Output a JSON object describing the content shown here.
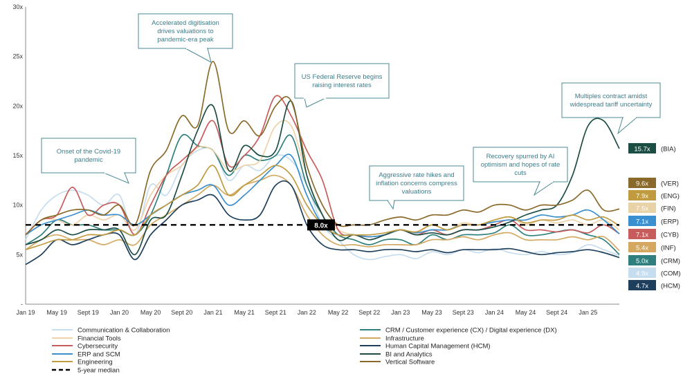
{
  "chart_data": {
    "type": "line",
    "title": "",
    "xlabel": "",
    "ylabel": "",
    "ylim": [
      0,
      30
    ],
    "yticks": [
      "-",
      "5x",
      "10x",
      "15x",
      "20x",
      "25x",
      "30x"
    ],
    "xticks": [
      "Jan 19",
      "May 19",
      "Sept 19",
      "Jan 20",
      "May 20",
      "Sept 20",
      "Jan 21",
      "May 21",
      "Sept 21",
      "Jan 22",
      "May 22",
      "Sept 22",
      "Jan 23",
      "May 23",
      "Sept 23",
      "Jan 24",
      "May 24",
      "Sept 24",
      "Jan 25"
    ],
    "x": [
      0,
      2,
      4,
      6,
      8,
      10,
      12,
      14,
      16,
      18,
      20,
      22,
      24,
      26,
      28,
      30,
      32,
      34,
      36,
      38,
      40,
      42,
      44,
      46,
      48,
      50,
      52,
      54,
      56,
      58,
      60,
      62,
      64,
      66,
      68,
      70,
      72,
      74,
      76
    ],
    "median": {
      "label": "5-year  median",
      "value": 8.0,
      "value_label": "8.0x"
    },
    "series": [
      {
        "name": "Communication & Collaboration",
        "code": "(COM)",
        "end_label": "4.9x",
        "color": "#c6dcef",
        "values": [
          6.5,
          9.5,
          11,
          11.5,
          11,
          10,
          11,
          7,
          12,
          11,
          14,
          15.5,
          15.5,
          12.5,
          14,
          13.5,
          15,
          14.5,
          12,
          8,
          6.5,
          5,
          4.5,
          4.8,
          5,
          4.6,
          5.3,
          5,
          5.5,
          5.2,
          5.6,
          5.2,
          5,
          5.3,
          5,
          5.2,
          6,
          5.5,
          4.9
        ]
      },
      {
        "name": "CRM / Customer experience (CX) / Digital experience (DX)",
        "code": "(CRM)",
        "end_label": "5.0x",
        "color": "#2e7f7d",
        "values": [
          6,
          7,
          8.5,
          8,
          8,
          7.5,
          7.5,
          7,
          9,
          13,
          17,
          16,
          15.5,
          13,
          15,
          14.5,
          15,
          17,
          12,
          9,
          7,
          6.5,
          6,
          6.5,
          6.5,
          6,
          7,
          6.5,
          7,
          7,
          7.2,
          8,
          7,
          7,
          7.3,
          7.5,
          7,
          6.5,
          5
        ]
      },
      {
        "name": "Financial Tools",
        "code": "(FIN)",
        "end_label": "7.5x",
        "color": "#efd3a8",
        "values": [
          7,
          8.5,
          8.5,
          8,
          9,
          8.5,
          9,
          7.5,
          11,
          13,
          14,
          15.8,
          15.5,
          13.5,
          14,
          14.5,
          18,
          18,
          13,
          9,
          7.5,
          7,
          6.8,
          7,
          7.5,
          7.2,
          8,
          7.5,
          8.2,
          8,
          8.5,
          8.8,
          8,
          8.5,
          8.2,
          8.5,
          8,
          8.5,
          7.5
        ]
      },
      {
        "name": "Infrastructure",
        "code": "(INF)",
        "end_label": "5.4x",
        "color": "#d4a860",
        "values": [
          5.5,
          6.5,
          7,
          6.5,
          6.5,
          6,
          6.5,
          6,
          8,
          9,
          10,
          11,
          12,
          11,
          12,
          12.5,
          13,
          12,
          9,
          7,
          6,
          6,
          5.8,
          6,
          6,
          6,
          6.5,
          6.5,
          6.8,
          6.5,
          7,
          7.2,
          6.5,
          6.5,
          6.5,
          6.8,
          6.5,
          6.8,
          5.4
        ]
      },
      {
        "name": "Cybersecurity",
        "code": "(CYB)",
        "end_label": "7.1x",
        "color": "#c85c5c",
        "values": [
          7,
          8.5,
          9,
          11.8,
          9,
          10,
          10,
          7,
          10,
          13,
          14.5,
          16,
          18.5,
          14,
          15,
          17,
          21,
          19,
          15.5,
          12.5,
          7.5,
          7,
          6.8,
          7,
          7.5,
          7,
          7.5,
          7,
          7.5,
          7.5,
          8,
          8.5,
          7.5,
          7.5,
          7.3,
          7.5,
          7.2,
          8,
          7.1
        ]
      },
      {
        "name": "Human Capital Management (HCM)",
        "code": "(HCM)",
        "end_label": "4.7x",
        "color": "#1d3f5c",
        "values": [
          4,
          5,
          6.5,
          6,
          6.5,
          7,
          7,
          4.5,
          7,
          8.5,
          10,
          10.5,
          11,
          9,
          8.5,
          9,
          12,
          12,
          8,
          6,
          5.5,
          5.5,
          5.3,
          5.5,
          5.5,
          5.3,
          5.5,
          5.2,
          5.5,
          5.5,
          5.5,
          5.6,
          5.3,
          5,
          5.2,
          5.3,
          5.5,
          5.2,
          4.7
        ]
      },
      {
        "name": "ERP and SCM",
        "code": "(ERP)",
        "end_label": "7.1x",
        "color": "#3a8fd0",
        "values": [
          7,
          8,
          8.5,
          9,
          9.5,
          9,
          9,
          8,
          9,
          10,
          11,
          11.5,
          12,
          10,
          11,
          12.5,
          14,
          15,
          11,
          8,
          7,
          7,
          6.8,
          7,
          7.5,
          7.2,
          7.5,
          7.5,
          8,
          8,
          8.3,
          8.5,
          8.5,
          9,
          8.8,
          9,
          9.5,
          8.5,
          7.1
        ]
      },
      {
        "name": "BI and Analytics",
        "code": "(BIA)",
        "end_label": "15.7x",
        "color": "#1b4d45",
        "values": [
          6,
          6.5,
          7.5,
          7,
          7.5,
          7.5,
          7.5,
          5,
          8.5,
          9,
          13,
          17.5,
          20,
          13.5,
          16,
          15,
          15.5,
          20.5,
          13,
          9,
          6.5,
          7,
          6.5,
          7,
          7.5,
          7,
          7.2,
          7,
          7.5,
          7.5,
          7.8,
          8.3,
          9,
          9.5,
          10,
          13,
          18,
          18.5,
          15.7
        ]
      },
      {
        "name": "Engineering",
        "code": "(ENG)",
        "end_label": "7.9x",
        "color": "#c09a3e",
        "values": [
          5.5,
          6,
          6.5,
          6.5,
          7,
          7,
          7.5,
          7,
          9,
          10,
          11,
          12,
          14,
          11,
          12,
          13,
          14,
          13,
          10,
          8,
          7,
          7,
          7,
          7.2,
          7.5,
          7.3,
          8,
          7.5,
          8,
          8,
          8.5,
          8.8,
          8.2,
          8.5,
          8.5,
          9,
          8.5,
          8.8,
          7.9
        ]
      },
      {
        "name": "Vertical Software",
        "code": "(VER)",
        "end_label": "9.6x",
        "color": "#8a6a2a",
        "values": [
          7,
          8.5,
          9,
          9.5,
          9.5,
          9,
          10,
          8,
          13.5,
          15.5,
          19,
          18,
          24.5,
          17.5,
          18.5,
          17,
          20,
          20.5,
          14,
          10,
          8,
          8,
          8,
          8.5,
          8.8,
          8.5,
          9,
          9,
          9.5,
          9.3,
          10,
          10,
          9.5,
          10,
          10,
          10.5,
          11.5,
          9.5,
          9.6
        ]
      }
    ],
    "badges_order": [
      "BI and Analytics",
      "Vertical Software",
      "Engineering",
      "Financial Tools",
      "ERP and SCM",
      "Cybersecurity",
      "Infrastructure",
      "CRM / Customer experience (CX) / Digital experience (DX)",
      "Communication & Collaboration",
      "Human Capital Management (HCM)"
    ],
    "badge_colors": [
      "#1b4d45",
      "#8a6a2a",
      "#c09a3e",
      "#e8d3a8",
      "#3a8fd0",
      "#c85c5c",
      "#d4a860",
      "#2e7f7d",
      "#c6dcef",
      "#1d3f5c"
    ],
    "annotations": [
      "Accelerated digitisation drives valuations to pandemic-era peak",
      "Onset of the Covid-19 pandemic",
      "US Federal Reserve begins raising interest rates",
      "Aggressive rate hikes and inflation concerns compress valuations",
      "Recovery spurred by AI optimism and hopes of rate cuts",
      "Multiples contract amidst widespread tariff uncertainty"
    ]
  }
}
